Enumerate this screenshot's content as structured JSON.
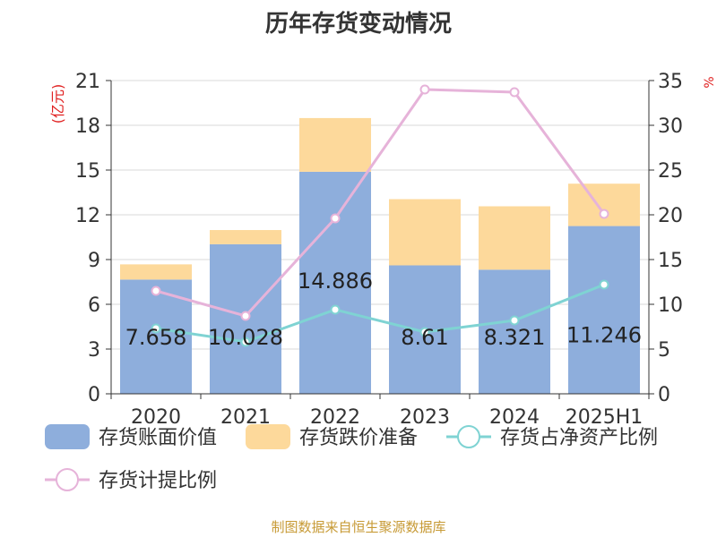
{
  "title": "历年存货变动情况",
  "source": "制图数据来自恒生聚源数据库",
  "chart_data": {
    "type": "bar",
    "title": "历年存货变动情况",
    "categories": [
      "2020",
      "2021",
      "2022",
      "2023",
      "2024",
      "2025H1"
    ],
    "ylabel_left": "(亿元)",
    "ylabel_right": "%",
    "ylim_left": [
      0,
      21
    ],
    "ylim_right": [
      0,
      35
    ],
    "yticks_left": [
      0,
      3,
      6,
      9,
      12,
      15,
      18,
      21
    ],
    "yticks_right": [
      0,
      5,
      10,
      15,
      20,
      25,
      30,
      35
    ],
    "grid": true,
    "legend_position": "bottom",
    "bar_series": [
      {
        "name": "存货账面价值",
        "color": "#8eaedc",
        "axis": "left",
        "values": [
          7.658,
          10.028,
          14.886,
          8.61,
          8.321,
          11.246
        ],
        "labels": [
          "7.658",
          "10.028",
          "14.886",
          "8.61",
          "8.321",
          "11.246"
        ]
      },
      {
        "name": "存货跌价准备",
        "color": "#fdd99b",
        "axis": "left",
        "values": [
          1.02,
          0.95,
          3.6,
          4.44,
          4.25,
          2.84
        ]
      }
    ],
    "line_series": [
      {
        "name": "存货占净资产比例",
        "color": "#7fd3d3",
        "axis": "right",
        "values": [
          7.3,
          5.8,
          9.4,
          6.9,
          8.2,
          12.2
        ]
      },
      {
        "name": "存货计提比例",
        "color": "#e6b3d9",
        "axis": "right",
        "values": [
          11.5,
          8.7,
          19.6,
          34.0,
          33.7,
          20.1
        ]
      }
    ]
  }
}
